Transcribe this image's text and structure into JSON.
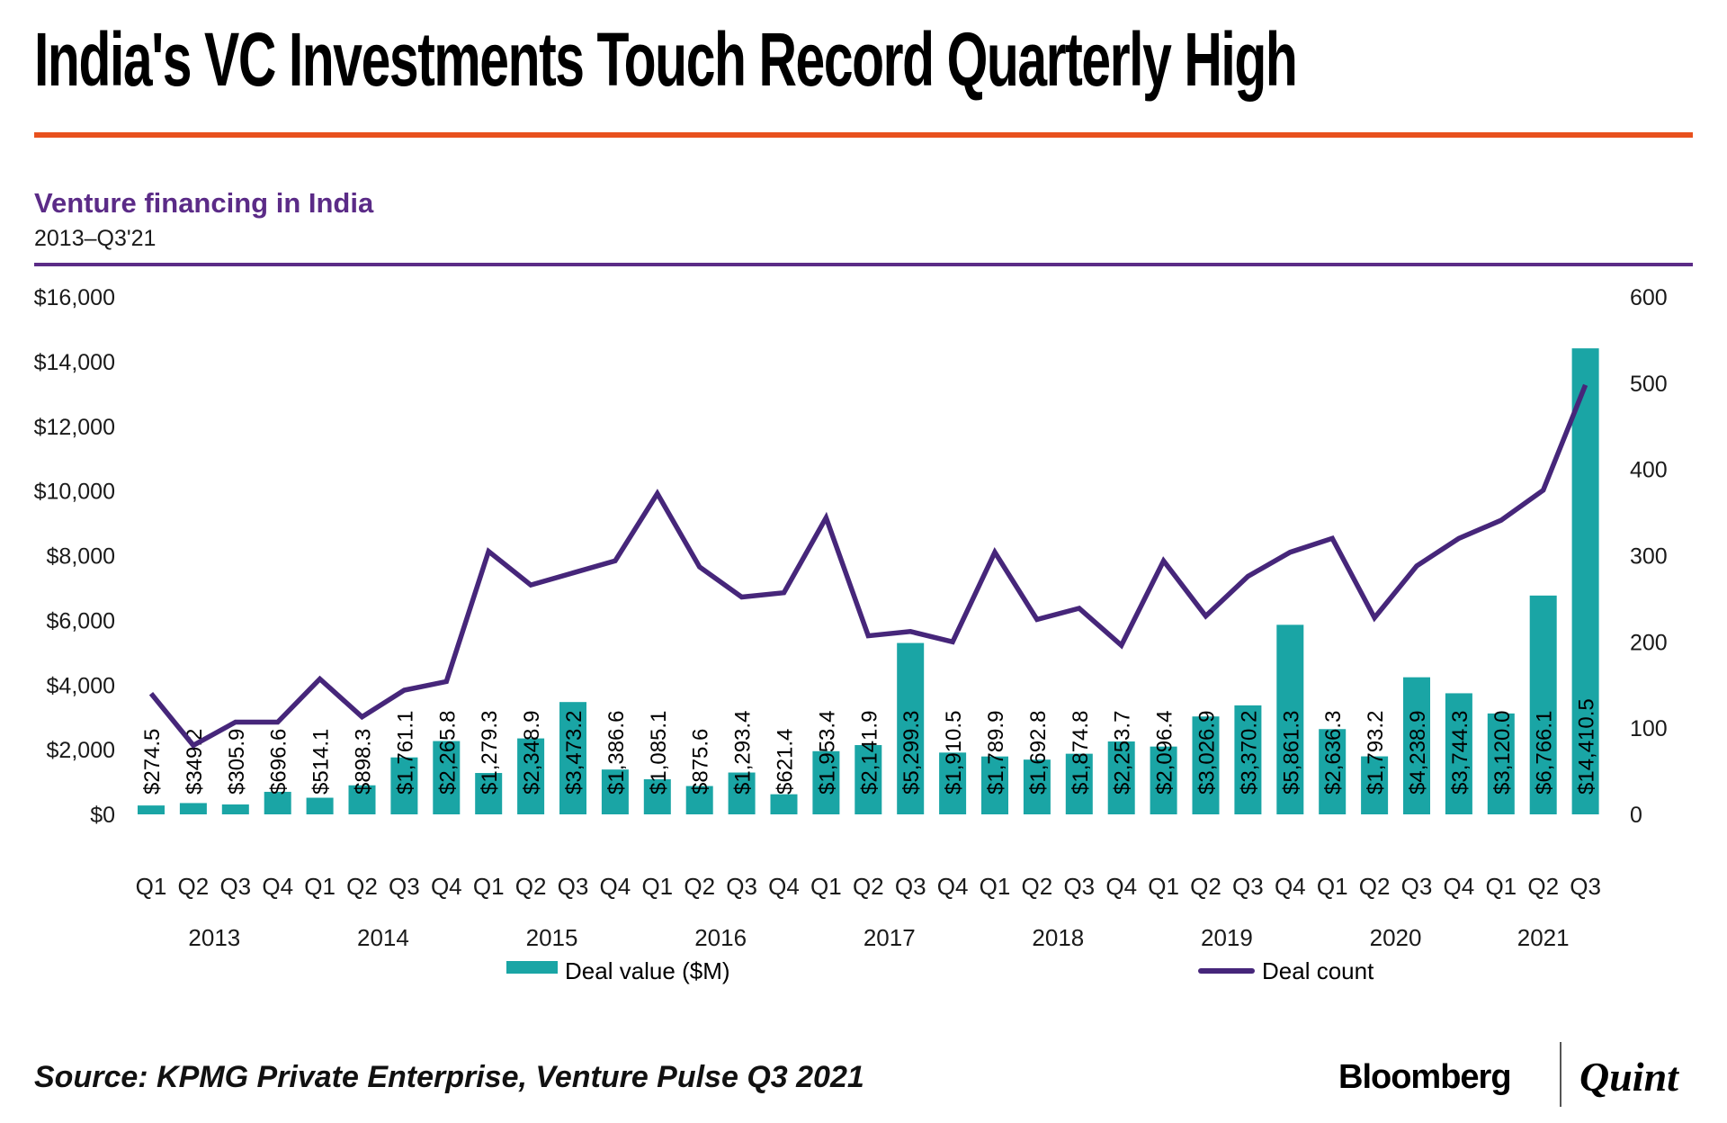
{
  "header": {
    "title": "India's VC Investments Touch Record Quarterly High"
  },
  "chart_header": {
    "heading": "Venture financing in India",
    "period": "2013–Q3'21"
  },
  "legend": {
    "deal_value": "Deal value ($M)",
    "deal_count": "Deal count"
  },
  "footer": {
    "source": "Source: KPMG Private Enterprise, Venture Pulse Q3 2021",
    "brand_left": "Bloomberg",
    "brand_right": "Quint"
  },
  "colors": {
    "bar": "#1aa5a5",
    "line": "#46267a",
    "heading_purple": "#5b2b87",
    "rule_orange": "#e8511e",
    "text": "#000000"
  },
  "chart_data": {
    "type": "bar+line combo",
    "title": "Venture financing in India",
    "subtitle": "2013–Q3'21",
    "grid": false,
    "legend_position": "bottom",
    "categories": [
      "Q1",
      "Q2",
      "Q3",
      "Q4",
      "Q1",
      "Q2",
      "Q3",
      "Q4",
      "Q1",
      "Q2",
      "Q3",
      "Q4",
      "Q1",
      "Q2",
      "Q3",
      "Q4",
      "Q1",
      "Q2",
      "Q3",
      "Q4",
      "Q1",
      "Q2",
      "Q3",
      "Q4",
      "Q1",
      "Q2",
      "Q3",
      "Q4",
      "Q1",
      "Q2",
      "Q3",
      "Q4",
      "Q1",
      "Q2",
      "Q3"
    ],
    "year_groups": [
      {
        "label": "2013",
        "count": 4
      },
      {
        "label": "2014",
        "count": 4
      },
      {
        "label": "2015",
        "count": 4
      },
      {
        "label": "2016",
        "count": 4
      },
      {
        "label": "2017",
        "count": 4
      },
      {
        "label": "2018",
        "count": 4
      },
      {
        "label": "2019",
        "count": 4
      },
      {
        "label": "2020",
        "count": 4
      },
      {
        "label": "2021",
        "count": 3
      }
    ],
    "series": [
      {
        "name": "Deal value ($M)",
        "type": "bar",
        "axis": "left",
        "values": [
          274.5,
          349.2,
          305.9,
          696.6,
          514.1,
          898.3,
          1761.1,
          2265.8,
          1279.3,
          2348.9,
          3473.2,
          1386.6,
          1085.1,
          875.6,
          1293.4,
          621.4,
          1953.4,
          2141.9,
          5299.3,
          1910.5,
          1789.9,
          1692.8,
          1874.8,
          2253.7,
          2096.4,
          3026.9,
          3370.2,
          5861.3,
          2636.3,
          1793.2,
          4238.9,
          3744.3,
          3120.0,
          6766.1,
          14410.5
        ],
        "labels": [
          "$274.5",
          "$349.2",
          "$305.9",
          "$696.6",
          "$514.1",
          "$898.3",
          "$1,761.1",
          "$2,265.8",
          "$1,279.3",
          "$2,348.9",
          "$3,473.2",
          "$1,386.6",
          "$1,085.1",
          "$875.6",
          "$1,293.4",
          "$621.4",
          "$1,953.4",
          "$2,141.9",
          "$5,299.3",
          "$1,910.5",
          "$1,789.9",
          "$1,692.8",
          "$1,874.8",
          "$2,253.7",
          "$2,096.4",
          "$3,026.9",
          "$3,370.2",
          "$5,861.3",
          "$2,636.3",
          "$1,793.2",
          "$4,238.9",
          "$3,744.3",
          "$3,120.0",
          "$6,766.1",
          "$14,410.5"
        ]
      },
      {
        "name": "Deal count",
        "type": "line",
        "axis": "right",
        "values": [
          140,
          80,
          107,
          107,
          157,
          113,
          144,
          154,
          305,
          266,
          280,
          294,
          372,
          287,
          252,
          257,
          344,
          207,
          212,
          200,
          304,
          226,
          239,
          196,
          294,
          230,
          276,
          304,
          320,
          228,
          288,
          320,
          341,
          376,
          498
        ]
      }
    ],
    "left_axis": {
      "min": 0,
      "max": 16000,
      "step": 2000,
      "ticks": [
        "$16,000",
        "$14,000",
        "$12,000",
        "$10,000",
        "$8,000",
        "$6,000",
        "$4,000",
        "$2,000",
        "$0"
      ]
    },
    "right_axis": {
      "min": 0,
      "max": 600,
      "step": 100,
      "ticks": [
        "600",
        "500",
        "400",
        "300",
        "200",
        "100",
        "0"
      ]
    }
  }
}
